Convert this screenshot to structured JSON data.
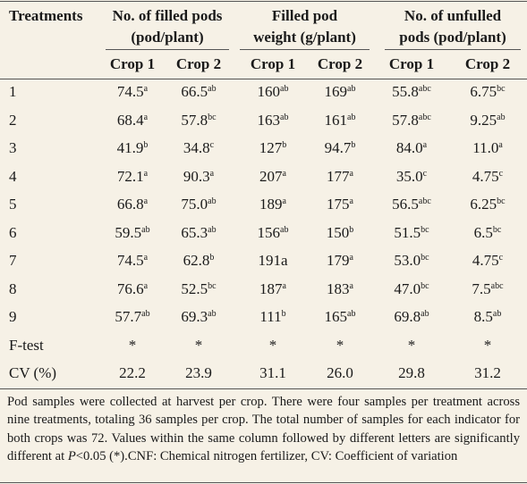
{
  "table": {
    "corner": "Treatments",
    "groups": [
      {
        "lines": [
          "No. of filled pods",
          "(pod/plant)"
        ]
      },
      {
        "lines": [
          "Filled pod",
          "weight (g/plant)"
        ]
      },
      {
        "lines": [
          "No. of unfulled",
          "pods (pod/plant)"
        ]
      }
    ],
    "subheaders": [
      "Crop 1",
      "Crop 2",
      "Crop 1",
      "Crop 2",
      "Crop 1",
      "Crop 2"
    ],
    "rows": [
      {
        "label": "1",
        "cells": [
          {
            "text": "74.5",
            "sup": "a"
          },
          {
            "text": "66.5",
            "sup": "ab"
          },
          {
            "text": "160",
            "sup": "ab"
          },
          {
            "text": "169",
            "sup": "ab"
          },
          {
            "text": "55.8",
            "sup": "abc"
          },
          {
            "text": "6.75",
            "sup": "bc"
          }
        ]
      },
      {
        "label": "2",
        "cells": [
          {
            "text": "68.4",
            "sup": "a"
          },
          {
            "text": "57.8",
            "sup": "bc"
          },
          {
            "text": "163",
            "sup": "ab"
          },
          {
            "text": "161",
            "sup": "ab"
          },
          {
            "text": "57.8",
            "sup": "abc"
          },
          {
            "text": "9.25",
            "sup": "ab"
          }
        ]
      },
      {
        "label": "3",
        "cells": [
          {
            "text": "41.9",
            "sup": "b"
          },
          {
            "text": "34.8",
            "sup": "c"
          },
          {
            "text": "127",
            "sup": "b"
          },
          {
            "text": "94.7",
            "sup": "b"
          },
          {
            "text": "84.0",
            "sup": "a"
          },
          {
            "text": "11.0",
            "sup": "a"
          }
        ]
      },
      {
        "label": "4",
        "cells": [
          {
            "text": "72.1",
            "sup": "a"
          },
          {
            "text": "90.3",
            "sup": "a"
          },
          {
            "text": "207",
            "sup": "a"
          },
          {
            "text": "177",
            "sup": "a"
          },
          {
            "text": "35.0",
            "sup": "c"
          },
          {
            "text": "4.75",
            "sup": "c"
          }
        ]
      },
      {
        "label": "5",
        "cells": [
          {
            "text": "66.8",
            "sup": "a"
          },
          {
            "text": "75.0",
            "sup": "ab"
          },
          {
            "text": "189",
            "sup": "a"
          },
          {
            "text": "175",
            "sup": "a"
          },
          {
            "text": "56.5",
            "sup": "abc"
          },
          {
            "text": "6.25",
            "sup": "bc"
          }
        ]
      },
      {
        "label": "6",
        "cells": [
          {
            "text": "59.5",
            "sup": "ab"
          },
          {
            "text": "65.3",
            "sup": "ab"
          },
          {
            "text": "156",
            "sup": "ab"
          },
          {
            "text": "150",
            "sup": "b"
          },
          {
            "text": "51.5",
            "sup": "bc"
          },
          {
            "text": "6.5",
            "sup": "bc"
          }
        ]
      },
      {
        "label": "7",
        "cells": [
          {
            "text": "74.5",
            "sup": "a"
          },
          {
            "text": "62.8",
            "sup": "b"
          },
          {
            "text": "191a"
          },
          {
            "text": "179",
            "sup": "a"
          },
          {
            "text": "53.0",
            "sup": "bc"
          },
          {
            "text": "4.75",
            "sup": "c"
          }
        ]
      },
      {
        "label": "8",
        "cells": [
          {
            "text": "76.6",
            "sup": "a"
          },
          {
            "text": "52.5",
            "sup": "bc"
          },
          {
            "text": "187",
            "sup": "a"
          },
          {
            "text": "183",
            "sup": "a"
          },
          {
            "text": "47.0",
            "sup": "bc"
          },
          {
            "text": "7.5",
            "sup": "abc"
          }
        ]
      },
      {
        "label": "9",
        "cells": [
          {
            "text": "57.7",
            "sup": "ab"
          },
          {
            "text": "69.3",
            "sup": "ab"
          },
          {
            "text": "111",
            "sup": "b"
          },
          {
            "text": "165",
            "sup": "ab"
          },
          {
            "text": "69.8",
            "sup": "ab"
          },
          {
            "text": "8.5",
            "sup": "ab"
          }
        ]
      },
      {
        "label": "F-test",
        "cells": [
          {
            "text": "*"
          },
          {
            "text": "*"
          },
          {
            "text": "*"
          },
          {
            "text": "*"
          },
          {
            "text": "*"
          },
          {
            "text": "*"
          }
        ]
      },
      {
        "label": "CV (%)",
        "cells": [
          {
            "text": "22.2"
          },
          {
            "text": "23.9"
          },
          {
            "text": "31.1"
          },
          {
            "text": "26.0"
          },
          {
            "text": "29.8"
          },
          {
            "text": "31.2"
          }
        ]
      }
    ]
  },
  "note": [
    "Pod samples were collected at harvest per crop. There were four samples per treatment across nine treatments, totaling 36 samples per crop. The total number of samples for each indicator for both crops was 72. Values within the same column followed by different letters are significantly different at ",
    "P",
    "<0.05 (*).CNF: Chemical nitrogen fertilizer, CV: Coefficient of variation"
  ]
}
